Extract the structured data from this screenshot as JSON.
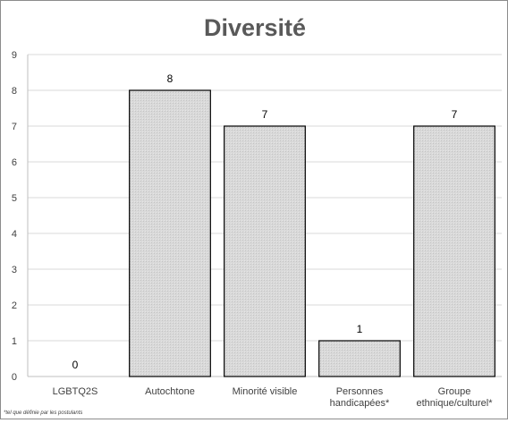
{
  "chart_data": {
    "type": "bar",
    "title": "Diversité",
    "categories": [
      [
        "LGBTQ2S"
      ],
      [
        "Autochtone"
      ],
      [
        "Minorité visible"
      ],
      [
        "Personnes",
        "handicapées*"
      ],
      [
        "Groupe",
        "ethnique/culturel*"
      ]
    ],
    "values": [
      0,
      8,
      7,
      1,
      7
    ],
    "xlabel": "",
    "ylabel": "",
    "ylim": [
      0,
      9
    ],
    "yticks": [
      0,
      1,
      2,
      3,
      4,
      5,
      6,
      7,
      8,
      9
    ],
    "grid": true,
    "legend": "none",
    "footnote": "*tel que définie par les postulants",
    "colors": {
      "bar_fill": "#d9d9d9",
      "bar_stroke": "#000000",
      "grid": "#d9d9d9",
      "axis": "#bfbfbf",
      "text": "#404040",
      "title": "#595959"
    }
  }
}
